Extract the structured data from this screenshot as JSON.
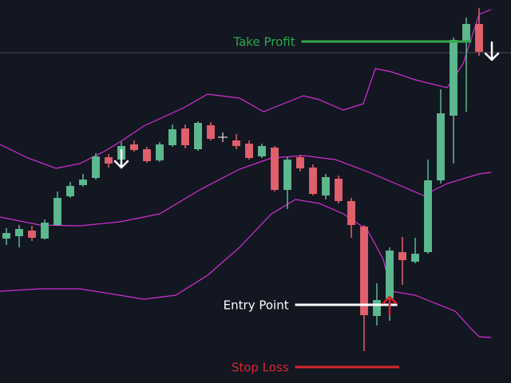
{
  "chart_data": {
    "type": "candlestick",
    "xlim": [
      -0.5,
      39.5
    ],
    "ylim": [
      0,
      480
    ],
    "up_color": "#5cb88f",
    "down_color": "#e0606b",
    "x": [
      0,
      1,
      2,
      3,
      4,
      5,
      6,
      7,
      8,
      9,
      10,
      11,
      12,
      13,
      14,
      15,
      16,
      18,
      19,
      20,
      21,
      22,
      23,
      24,
      25,
      26,
      27,
      28,
      29,
      30,
      31,
      32,
      33,
      34,
      35,
      36,
      37
    ],
    "open": [
      181,
      184,
      191,
      181,
      198,
      234,
      248,
      257,
      283,
      280,
      299,
      293,
      279,
      298,
      319,
      293,
      323,
      304,
      300,
      284,
      295,
      242,
      283,
      270,
      235,
      256,
      228,
      196,
      84,
      106,
      164,
      152,
      164,
      254,
      335,
      429,
      450
    ],
    "high": [
      194,
      198,
      197,
      205,
      240,
      252,
      262,
      288,
      287,
      302,
      304,
      296,
      302,
      324,
      324,
      328,
      327,
      312,
      304,
      300,
      297,
      283,
      286,
      274,
      262,
      260,
      232,
      198,
      125,
      170,
      183,
      182,
      280,
      368,
      433,
      458,
      470
    ],
    "low": [
      173,
      170,
      178,
      180,
      197,
      232,
      246,
      255,
      270,
      275,
      290,
      276,
      277,
      296,
      294,
      291,
      304,
      293,
      280,
      282,
      240,
      218,
      265,
      235,
      230,
      225,
      182,
      40,
      72,
      78,
      123,
      150,
      162,
      250,
      275,
      340,
      410
    ],
    "close": [
      188,
      193,
      182,
      201,
      232,
      247,
      255,
      284,
      275,
      297,
      292,
      278,
      299,
      318,
      298,
      326,
      306,
      297,
      282,
      297,
      242,
      280,
      269,
      237,
      258,
      228,
      198,
      85,
      104,
      166,
      154,
      162,
      254,
      338,
      430,
      450,
      415
    ],
    "bands": [
      {
        "color": "#d42fd4",
        "x": [
          -0.5,
          1.69,
          3.88,
          5.75,
          7.63,
          8.88,
          10.75,
          13.88,
          15.75,
          18.25,
          20.13,
          22,
          23.25,
          24.5,
          26.38,
          27.94,
          28.88,
          30.13,
          32,
          34.5,
          35.75,
          37,
          37.94
        ],
        "values": [
          299,
          282,
          269,
          275,
          290,
          302,
          322,
          345,
          362,
          357,
          340,
          352,
          360,
          355,
          342,
          350,
          394,
          390,
          380,
          370,
          400,
          462,
          468
        ]
      },
      {
        "color": "#d42fd4",
        "x": [
          -0.5,
          2.63,
          5.75,
          8.88,
          12,
          15.13,
          18.25,
          20.75,
          23.25,
          25.75,
          28.25,
          30.75,
          32.63,
          34.5,
          37,
          37.94
        ],
        "values": [
          208,
          198,
          197,
          202,
          212,
          242,
          268,
          282,
          285,
          280,
          265,
          248,
          235,
          250,
          262,
          264
        ]
      },
      {
        "color": "#d42fd4",
        "x": [
          -0.5,
          2.63,
          5.75,
          8.88,
          10.75,
          13.25,
          15.75,
          18.25,
          20.75,
          22.63,
          24.5,
          26.38,
          28.25,
          29.5,
          30.13,
          32,
          33.25,
          35.13,
          36.38,
          37,
          37.94
        ],
        "values": [
          115,
          118,
          118,
          110,
          105,
          110,
          135,
          170,
          212,
          230,
          225,
          212,
          192,
          155,
          115,
          110,
          102,
          90,
          68,
          58,
          57
        ]
      }
    ],
    "price_line": 414,
    "levels": [
      {
        "text": "Take Profit",
        "value": 428,
        "color": "#2fa84a",
        "x_start": 23.1,
        "x_end": 36.4
      },
      {
        "text": "Entry Point",
        "value": 98,
        "color": "#ffffff",
        "x_start": 22.6,
        "x_end": 30.6
      },
      {
        "text": "Stop Loss",
        "value": 20,
        "color": "#d9262e",
        "x_start": 22.6,
        "x_end": 30.75
      }
    ],
    "signals": [
      {
        "direction": "down",
        "x": 9,
        "value": 270,
        "color": "#ffffff"
      },
      {
        "direction": "down",
        "x": 38,
        "value": 405,
        "color": "#ffffff"
      },
      {
        "direction": "up",
        "x": 30,
        "value": 108,
        "color": "#e0202a"
      }
    ]
  }
}
